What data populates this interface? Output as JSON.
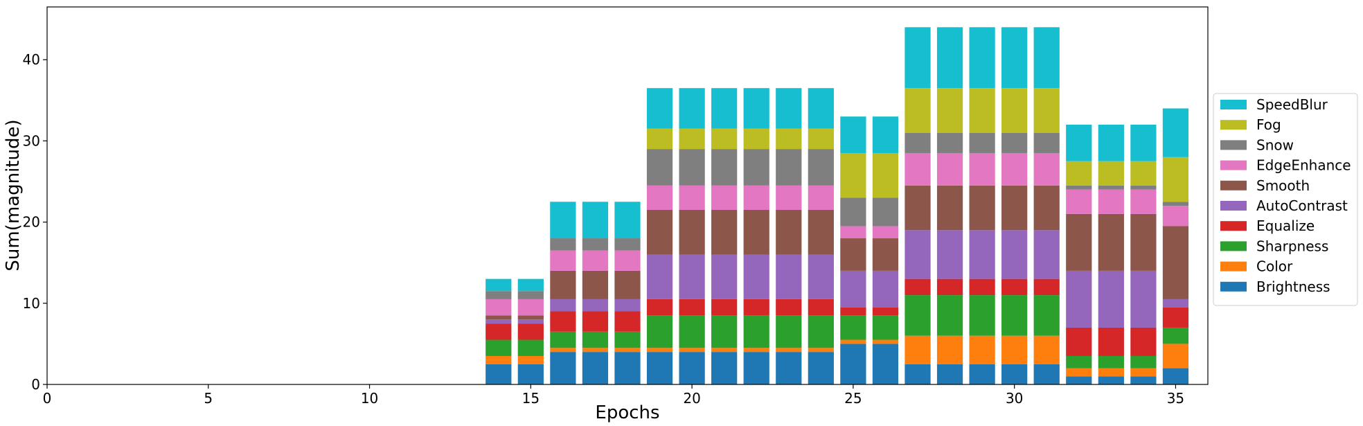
{
  "chart_data": {
    "type": "bar",
    "stacked": true,
    "xlabel": "Epochs",
    "ylabel": "Sum(magnitude)",
    "xlim": [
      0,
      36
    ],
    "ylim": [
      0,
      46.5
    ],
    "xticks": [
      0,
      5,
      10,
      15,
      20,
      25,
      30,
      35
    ],
    "yticks": [
      0,
      10,
      20,
      30,
      40
    ],
    "grid": false,
    "legend_position": "right",
    "x": [
      14,
      15,
      16,
      17,
      18,
      19,
      20,
      21,
      22,
      23,
      24,
      25,
      26,
      27,
      28,
      29,
      30,
      31,
      32,
      33,
      34,
      35
    ],
    "series": [
      {
        "name": "Brightness",
        "color": "#1f77b4",
        "values": [
          2.5,
          2.5,
          4,
          4,
          4,
          4,
          4,
          4,
          4,
          4,
          4,
          5,
          5,
          2.5,
          2.5,
          2.5,
          2.5,
          2.5,
          1,
          1,
          1,
          2
        ]
      },
      {
        "name": "Color",
        "color": "#ff7f0e",
        "values": [
          1,
          1,
          0.5,
          0.5,
          0.5,
          0.5,
          0.5,
          0.5,
          0.5,
          0.5,
          0.5,
          0.5,
          0.5,
          3.5,
          3.5,
          3.5,
          3.5,
          3.5,
          1,
          1,
          1,
          3
        ]
      },
      {
        "name": "Sharpness",
        "color": "#2ca02c",
        "values": [
          2,
          2,
          2,
          2,
          2,
          4,
          4,
          4,
          4,
          4,
          4,
          3,
          3,
          5,
          5,
          5,
          5,
          5,
          1.5,
          1.5,
          1.5,
          2
        ]
      },
      {
        "name": "Equalize",
        "color": "#d62728",
        "values": [
          2,
          2,
          2.5,
          2.5,
          2.5,
          2,
          2,
          2,
          2,
          2,
          2,
          1,
          1,
          2,
          2,
          2,
          2,
          2,
          3.5,
          3.5,
          3.5,
          2.5
        ]
      },
      {
        "name": "AutoContrast",
        "color": "#9467bd",
        "values": [
          0.5,
          0.5,
          1.5,
          1.5,
          1.5,
          5.5,
          5.5,
          5.5,
          5.5,
          5.5,
          5.5,
          4.5,
          4.5,
          6,
          6,
          6,
          6,
          6,
          7,
          7,
          7,
          1
        ]
      },
      {
        "name": "Smooth",
        "color": "#8c564b",
        "values": [
          0.5,
          0.5,
          3.5,
          3.5,
          3.5,
          5.5,
          5.5,
          5.5,
          5.5,
          5.5,
          5.5,
          4,
          4,
          5.5,
          5.5,
          5.5,
          5.5,
          5.5,
          7,
          7,
          7,
          9
        ]
      },
      {
        "name": "EdgeEnhance",
        "color": "#e377c2",
        "values": [
          2,
          2,
          2.5,
          2.5,
          2.5,
          3,
          3,
          3,
          3,
          3,
          3,
          1.5,
          1.5,
          4,
          4,
          4,
          4,
          4,
          3,
          3,
          3,
          2.5
        ]
      },
      {
        "name": "Snow",
        "color": "#7f7f7f",
        "values": [
          1,
          1,
          1.5,
          1.5,
          1.5,
          4.5,
          4.5,
          4.5,
          4.5,
          4.5,
          4.5,
          3.5,
          3.5,
          2.5,
          2.5,
          2.5,
          2.5,
          2.5,
          0.5,
          0.5,
          0.5,
          0.5
        ]
      },
      {
        "name": "Fog",
        "color": "#bcbd22",
        "values": [
          0,
          0,
          0,
          0,
          0,
          2.5,
          2.5,
          2.5,
          2.5,
          2.5,
          2.5,
          5.5,
          5.5,
          5.5,
          5.5,
          5.5,
          5.5,
          5.5,
          3,
          3,
          3,
          5.5
        ]
      },
      {
        "name": "SpeedBlur",
        "color": "#17becf",
        "values": [
          1.5,
          1.5,
          4.5,
          4.5,
          4.5,
          5,
          5,
          5,
          5,
          5,
          5,
          4.5,
          4.5,
          7.5,
          7.5,
          7.5,
          7.5,
          7.5,
          4.5,
          4.5,
          4.5,
          6
        ]
      }
    ]
  }
}
